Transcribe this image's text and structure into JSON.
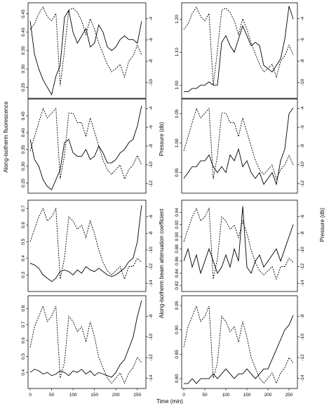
{
  "figure": {
    "xlabel": "Time (min)",
    "left_ylabel": "Along-isotherm fluorescence",
    "right_ylabel_top": "Pressure (db)",
    "right_ylabel_mid": "Along-isotherm beam attenuation coefficient",
    "right_ylabel_right": "Pressure (db)"
  },
  "chart_data": [
    {
      "type": "line",
      "panel": "left-1",
      "xlim": [
        -5,
        270
      ],
      "xticks": [
        0,
        50,
        100,
        150,
        200,
        250
      ],
      "ylim": [
        0.22,
        0.48
      ],
      "yticks": [
        0.25,
        0.3,
        0.35,
        0.4,
        0.45
      ],
      "yticklabels": [
        "0.25",
        "0.30",
        "0.35",
        "0.40",
        "0.45"
      ],
      "ylim2": [
        -11.5,
        -2.5
      ],
      "yticks2": [
        -10,
        -8,
        -6,
        -4
      ],
      "solid_x": [
        0,
        10,
        20,
        30,
        40,
        50,
        60,
        70,
        80,
        90,
        100,
        110,
        120,
        130,
        140,
        150,
        160,
        170,
        180,
        190,
        200,
        210,
        220,
        230,
        240,
        250,
        260
      ],
      "solid": [
        0.43,
        0.34,
        0.3,
        0.27,
        0.25,
        0.23,
        0.28,
        0.31,
        0.44,
        0.46,
        0.4,
        0.37,
        0.39,
        0.41,
        0.36,
        0.37,
        0.42,
        0.4,
        0.36,
        0.35,
        0.36,
        0.38,
        0.39,
        0.38,
        0.38,
        0.37,
        0.43
      ],
      "dashed_x": [
        0,
        10,
        20,
        30,
        40,
        50,
        60,
        70,
        80,
        90,
        100,
        110,
        120,
        130,
        140,
        150,
        160,
        170,
        180,
        190,
        200,
        210,
        220,
        230,
        240,
        250,
        260
      ],
      "dashed": [
        -5.0,
        -4.5,
        -3.5,
        -2.9,
        -3.8,
        -4.2,
        -3.5,
        -10.3,
        -7.0,
        -3.2,
        -3.0,
        -3.4,
        -4.2,
        -5.5,
        -4.0,
        -5.0,
        -6.3,
        -7.3,
        -8.3,
        -9.0,
        -8.7,
        -8.3,
        -9.5,
        -8.0,
        -7.5,
        -6.5,
        -7.4
      ]
    },
    {
      "type": "line",
      "panel": "right-1",
      "xlim": [
        -5,
        270
      ],
      "xticks": [
        0,
        50,
        100,
        150,
        200,
        250
      ],
      "ylim": [
        0.96,
        1.25
      ],
      "yticks": [
        1.0,
        1.1,
        1.2
      ],
      "yticklabels": [
        "1.00",
        "1.10",
        "1.20"
      ],
      "ylim2": [
        -11.5,
        -2.5
      ],
      "yticks2": [
        -10,
        -8,
        -6,
        -4
      ],
      "solid_x": [
        0,
        10,
        20,
        30,
        40,
        50,
        60,
        70,
        80,
        90,
        100,
        110,
        120,
        130,
        140,
        150,
        160,
        170,
        180,
        190,
        200,
        210,
        220,
        230,
        240,
        250,
        260
      ],
      "solid": [
        0.98,
        0.98,
        0.99,
        0.99,
        1.0,
        1.0,
        1.01,
        1.0,
        1.0,
        1.13,
        1.15,
        1.12,
        1.1,
        1.14,
        1.18,
        1.15,
        1.12,
        1.13,
        1.12,
        1.06,
        1.05,
        1.04,
        1.06,
        1.08,
        1.14,
        1.24,
        1.2
      ],
      "dashed_x": [
        0,
        10,
        20,
        30,
        40,
        50,
        60,
        70,
        80,
        90,
        100,
        110,
        120,
        130,
        140,
        150,
        160,
        170,
        180,
        190,
        200,
        210,
        220,
        230,
        240,
        250,
        260
      ],
      "dashed": [
        -5.0,
        -4.5,
        -3.5,
        -2.9,
        -3.8,
        -4.2,
        -3.5,
        -10.3,
        -7.0,
        -3.2,
        -3.0,
        -3.4,
        -4.2,
        -5.5,
        -4.0,
        -5.0,
        -6.3,
        -7.3,
        -8.3,
        -9.0,
        -8.7,
        -8.3,
        -9.5,
        -8.0,
        -7.5,
        -6.5,
        -7.4
      ]
    },
    {
      "type": "line",
      "panel": "left-2",
      "xlim": [
        -5,
        270
      ],
      "xticks": [
        0,
        50,
        100,
        150,
        200,
        250
      ],
      "ylim": [
        0.22,
        0.5
      ],
      "yticks": [
        0.25,
        0.3,
        0.35,
        0.4,
        0.45
      ],
      "yticklabels": [
        "0.25",
        "0.30",
        "0.35",
        "0.40",
        "0.45"
      ],
      "ylim2": [
        -13,
        -3
      ],
      "yticks2": [
        -12,
        -10,
        -8,
        -6,
        -4
      ],
      "solid_x": [
        0,
        10,
        20,
        30,
        40,
        50,
        60,
        70,
        80,
        90,
        100,
        110,
        120,
        130,
        140,
        150,
        160,
        170,
        180,
        190,
        200,
        210,
        220,
        230,
        240,
        250,
        260
      ],
      "solid": [
        0.38,
        0.32,
        0.3,
        0.26,
        0.24,
        0.23,
        0.26,
        0.29,
        0.37,
        0.38,
        0.34,
        0.33,
        0.33,
        0.35,
        0.32,
        0.33,
        0.36,
        0.34,
        0.31,
        0.31,
        0.32,
        0.34,
        0.35,
        0.37,
        0.38,
        0.42,
        0.48
      ],
      "dashed_x": [
        0,
        10,
        20,
        30,
        40,
        50,
        60,
        70,
        80,
        90,
        100,
        110,
        120,
        130,
        140,
        150,
        160,
        170,
        180,
        190,
        200,
        210,
        220,
        230,
        240,
        250,
        260
      ],
      "dashed": [
        -8.5,
        -7.0,
        -5.5,
        -4.0,
        -5.0,
        -4.5,
        -4.0,
        -11.5,
        -9.0,
        -4.5,
        -4.5,
        -5.5,
        -5.5,
        -7.0,
        -5.0,
        -6.5,
        -8.0,
        -9.5,
        -10.5,
        -11.0,
        -10.5,
        -10.0,
        -11.5,
        -10.5,
        -10.0,
        -9.0,
        -10.0
      ]
    },
    {
      "type": "line",
      "panel": "right-2",
      "xlim": [
        -5,
        270
      ],
      "xticks": [
        0,
        50,
        100,
        150,
        200,
        250
      ],
      "ylim": [
        0.915,
        1.075
      ],
      "yticks": [
        0.95,
        1.0,
        1.05
      ],
      "yticklabels": [
        "0.95",
        "1.00",
        "1.05"
      ],
      "ylim2": [
        -13,
        -3
      ],
      "yticks2": [
        -12,
        -10,
        -8,
        -6,
        -4
      ],
      "solid_x": [
        0,
        10,
        20,
        30,
        40,
        50,
        60,
        70,
        80,
        90,
        100,
        110,
        120,
        130,
        140,
        150,
        160,
        170,
        180,
        190,
        200,
        210,
        220,
        230,
        240,
        250,
        260
      ],
      "solid": [
        0.94,
        0.95,
        0.96,
        0.96,
        0.97,
        0.97,
        0.98,
        0.96,
        0.95,
        0.96,
        0.95,
        0.98,
        0.97,
        0.99,
        0.96,
        0.97,
        0.95,
        0.94,
        0.95,
        0.93,
        0.94,
        0.95,
        0.93,
        0.97,
        0.99,
        1.05,
        1.06
      ],
      "dashed_x": [
        0,
        10,
        20,
        30,
        40,
        50,
        60,
        70,
        80,
        90,
        100,
        110,
        120,
        130,
        140,
        150,
        160,
        170,
        180,
        190,
        200,
        210,
        220,
        230,
        240,
        250,
        260
      ],
      "dashed": [
        -8.5,
        -7.0,
        -5.5,
        -4.0,
        -5.0,
        -4.5,
        -4.0,
        -11.5,
        -9.0,
        -4.5,
        -4.5,
        -5.5,
        -5.5,
        -7.0,
        -5.0,
        -6.5,
        -8.0,
        -9.5,
        -10.5,
        -11.0,
        -10.5,
        -10.0,
        -11.5,
        -10.5,
        -10.0,
        -9.0,
        -10.0
      ]
    },
    {
      "type": "line",
      "panel": "left-3",
      "xlim": [
        -5,
        270
      ],
      "xticks": [
        0,
        50,
        100,
        150,
        200,
        250
      ],
      "ylim": [
        0.2,
        0.75
      ],
      "yticks": [
        0.3,
        0.4,
        0.5,
        0.6,
        0.7
      ],
      "yticklabels": [
        "0.3",
        "0.4",
        "0.5",
        "0.6",
        "0.7"
      ],
      "ylim2": [
        -15,
        -4
      ],
      "yticks2": [
        -14,
        -12,
        -10,
        -8,
        -6
      ],
      "solid_x": [
        0,
        10,
        20,
        30,
        40,
        50,
        60,
        70,
        80,
        90,
        100,
        110,
        120,
        130,
        140,
        150,
        160,
        170,
        180,
        190,
        200,
        210,
        220,
        230,
        240,
        250,
        260
      ],
      "solid": [
        0.37,
        0.36,
        0.34,
        0.3,
        0.28,
        0.26,
        0.28,
        0.32,
        0.33,
        0.32,
        0.3,
        0.33,
        0.31,
        0.35,
        0.33,
        0.32,
        0.34,
        0.32,
        0.3,
        0.29,
        0.3,
        0.32,
        0.34,
        0.38,
        0.4,
        0.5,
        0.72
      ],
      "dashed_x": [
        0,
        10,
        20,
        30,
        40,
        50,
        60,
        70,
        80,
        90,
        100,
        110,
        120,
        130,
        140,
        150,
        160,
        170,
        180,
        190,
        200,
        210,
        220,
        230,
        240,
        250,
        260
      ],
      "dashed": [
        -9.0,
        -7.5,
        -6.0,
        -5.0,
        -6.5,
        -6.0,
        -5.0,
        -13.5,
        -11.0,
        -6.0,
        -6.5,
        -7.5,
        -7.0,
        -8.5,
        -6.5,
        -8.0,
        -10.0,
        -11.5,
        -12.5,
        -13.0,
        -12.5,
        -12.0,
        -13.5,
        -12.0,
        -12.0,
        -11.0,
        -11.5
      ]
    },
    {
      "type": "line",
      "panel": "right-3",
      "xlim": [
        -5,
        270
      ],
      "xticks": [
        0,
        50,
        100,
        150,
        200,
        250
      ],
      "ylim": [
        0.81,
        0.96
      ],
      "yticks": [
        0.82,
        0.84,
        0.86,
        0.88,
        0.9,
        0.92,
        0.94
      ],
      "yticklabels": [
        "0.82",
        "0.84",
        "0.86",
        "0.88",
        "0.90",
        "0.92",
        "0.94"
      ],
      "ylim2": [
        -15,
        -4
      ],
      "yticks2": [
        -14,
        -12,
        -10,
        -8,
        -6
      ],
      "solid_x": [
        0,
        10,
        20,
        30,
        40,
        50,
        60,
        70,
        80,
        90,
        100,
        110,
        120,
        130,
        140,
        150,
        160,
        170,
        180,
        190,
        200,
        210,
        220,
        230,
        240,
        250,
        260
      ],
      "solid": [
        0.86,
        0.88,
        0.85,
        0.87,
        0.84,
        0.86,
        0.88,
        0.86,
        0.84,
        0.85,
        0.87,
        0.85,
        0.88,
        0.86,
        0.95,
        0.85,
        0.84,
        0.86,
        0.87,
        0.85,
        0.86,
        0.87,
        0.88,
        0.86,
        0.88,
        0.9,
        0.92
      ],
      "dashed_x": [
        0,
        10,
        20,
        30,
        40,
        50,
        60,
        70,
        80,
        90,
        100,
        110,
        120,
        130,
        140,
        150,
        160,
        170,
        180,
        190,
        200,
        210,
        220,
        230,
        240,
        250,
        260
      ],
      "dashed": [
        -9.0,
        -7.5,
        -6.0,
        -5.0,
        -6.5,
        -6.0,
        -5.0,
        -13.5,
        -11.0,
        -6.0,
        -6.5,
        -7.5,
        -7.0,
        -8.5,
        -6.5,
        -8.0,
        -10.0,
        -11.5,
        -12.5,
        -13.0,
        -12.5,
        -12.0,
        -13.5,
        -12.0,
        -12.0,
        -11.0,
        -11.5
      ]
    },
    {
      "type": "line",
      "panel": "left-4",
      "xlim": [
        -5,
        270
      ],
      "xticks": [
        0,
        50,
        100,
        150,
        200,
        250
      ],
      "ylim": [
        0.3,
        0.88
      ],
      "yticks": [
        0.4,
        0.5,
        0.6,
        0.7,
        0.8
      ],
      "yticklabels": [
        "0.4",
        "0.5",
        "0.6",
        "0.7",
        "0.8"
      ],
      "ylim2": [
        -15,
        -6
      ],
      "yticks2": [
        -14,
        -12,
        -10,
        -8
      ],
      "solid_x": [
        0,
        10,
        20,
        30,
        40,
        50,
        60,
        70,
        80,
        90,
        100,
        110,
        120,
        130,
        140,
        150,
        160,
        170,
        180,
        190,
        200,
        210,
        220,
        230,
        240,
        250,
        260
      ],
      "solid": [
        0.4,
        0.42,
        0.41,
        0.39,
        0.4,
        0.38,
        0.39,
        0.41,
        0.4,
        0.38,
        0.41,
        0.4,
        0.42,
        0.39,
        0.41,
        0.38,
        0.4,
        0.39,
        0.38,
        0.37,
        0.4,
        0.45,
        0.48,
        0.55,
        0.62,
        0.75,
        0.85
      ],
      "dashed_x": [
        0,
        10,
        20,
        30,
        40,
        50,
        60,
        70,
        80,
        90,
        100,
        110,
        120,
        130,
        140,
        150,
        160,
        170,
        180,
        190,
        200,
        210,
        220,
        230,
        240,
        250,
        260
      ],
      "dashed": [
        -11.0,
        -9.0,
        -8.0,
        -7.0,
        -8.5,
        -8.0,
        -7.0,
        -14.0,
        -12.5,
        -8.0,
        -8.5,
        -9.5,
        -9.0,
        -10.5,
        -8.5,
        -10.0,
        -12.0,
        -13.0,
        -14.0,
        -14.5,
        -14.0,
        -13.5,
        -14.5,
        -13.5,
        -13.0,
        -12.0,
        -12.5
      ]
    },
    {
      "type": "line",
      "panel": "right-4",
      "xlim": [
        -5,
        270
      ],
      "xticks": [
        0,
        50,
        100,
        150,
        200,
        250
      ],
      "ylim": [
        0.78,
        0.97
      ],
      "yticks": [
        0.8,
        0.85,
        0.9,
        0.95
      ],
      "yticklabels": [
        "0.80",
        "0.85",
        "0.90",
        "0.95"
      ],
      "ylim2": [
        -15,
        -6
      ],
      "yticks2": [
        -14,
        -12,
        -10,
        -8
      ],
      "solid_x": [
        0,
        10,
        20,
        30,
        40,
        50,
        60,
        70,
        80,
        90,
        100,
        110,
        120,
        130,
        140,
        150,
        160,
        170,
        180,
        190,
        200,
        210,
        220,
        230,
        240,
        250,
        260
      ],
      "solid": [
        0.79,
        0.79,
        0.8,
        0.79,
        0.8,
        0.8,
        0.8,
        0.81,
        0.8,
        0.81,
        0.82,
        0.81,
        0.8,
        0.81,
        0.81,
        0.82,
        0.81,
        0.8,
        0.81,
        0.82,
        0.82,
        0.84,
        0.86,
        0.88,
        0.9,
        0.91,
        0.93
      ],
      "dashed_x": [
        0,
        10,
        20,
        30,
        40,
        50,
        60,
        70,
        80,
        90,
        100,
        110,
        120,
        130,
        140,
        150,
        160,
        170,
        180,
        190,
        200,
        210,
        220,
        230,
        240,
        250,
        260
      ],
      "dashed": [
        -11.0,
        -9.0,
        -8.0,
        -7.0,
        -8.5,
        -8.0,
        -7.0,
        -14.0,
        -12.5,
        -8.0,
        -8.5,
        -9.5,
        -9.0,
        -10.5,
        -8.5,
        -10.0,
        -12.0,
        -13.0,
        -14.0,
        -14.5,
        -14.0,
        -13.5,
        -14.5,
        -13.5,
        -13.0,
        -12.0,
        -12.5
      ]
    }
  ]
}
